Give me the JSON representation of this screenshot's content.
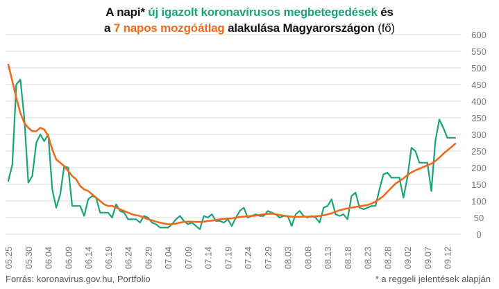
{
  "header": {
    "line1_prefix": "A napi*",
    "line1_highlight": "új igazolt koronavírusos megbetegedések",
    "line1_suffix": "és",
    "line2_prefix": "a",
    "line2_highlight": "7 napos mozgóátlag",
    "line2_suffix": "alakulása Magyarországon",
    "line2_unit": "(fő)"
  },
  "footer": {
    "source": "Forrás: koronavirus.gov.hu, Portfolio",
    "note": "* a reggeli jelentések alapján"
  },
  "colors": {
    "daily": "#1aa37a",
    "average": "#ee6a1a",
    "grid": "#dddddd",
    "axis_text": "#777777"
  },
  "chart_data": {
    "type": "line",
    "title": "A napi* új igazolt koronavírusos megbetegedések és a 7 napos mozgóátlag alakulása Magyarországon (fő)",
    "ylim": [
      0,
      600
    ],
    "y_ticks": [
      0,
      50,
      100,
      150,
      200,
      250,
      300,
      350,
      400,
      450,
      500,
      550,
      600
    ],
    "y_axis_side": "right",
    "grid": true,
    "x_tick_labels": [
      "05.25",
      "05.30",
      "06.04",
      "06.09",
      "06.14",
      "06.19",
      "06.24",
      "06.29",
      "07.04",
      "07.09",
      "07.14",
      "07.19",
      "07.24",
      "07.29",
      "08.03",
      "08.08",
      "08.13",
      "08.18",
      "08.23",
      "08.28",
      "09.02",
      "09.07",
      "09.12"
    ],
    "x_tick_every": 5,
    "series": [
      {
        "key": "daily",
        "values": [
          160,
          210,
          450,
          465,
          350,
          155,
          175,
          275,
          300,
          280,
          300,
          135,
          80,
          120,
          205,
          200,
          85,
          85,
          85,
          55,
          105,
          115,
          110,
          65,
          65,
          65,
          50,
          90,
          70,
          65,
          45,
          45,
          45,
          35,
          55,
          50,
          35,
          30,
          20,
          20,
          20,
          30,
          45,
          55,
          40,
          30,
          35,
          25,
          15,
          55,
          50,
          60,
          40,
          40,
          35,
          45,
          25,
          50,
          70,
          80,
          50,
          55,
          60,
          55,
          55,
          70,
          65,
          60,
          50,
          55,
          55,
          25,
          60,
          70,
          55,
          50,
          55,
          50,
          35,
          80,
          85,
          105,
          60,
          55,
          60,
          45,
          115,
          125,
          80,
          75,
          80,
          85,
          85,
          135,
          180,
          185,
          170,
          170,
          170,
          110,
          170,
          260,
          250,
          215,
          215,
          215,
          130,
          280,
          345,
          320,
          290,
          290,
          290
        ]
      },
      {
        "key": "average",
        "values": [
          510,
          460,
          410,
          365,
          335,
          320,
          310,
          310,
          320,
          315,
          295,
          255,
          225,
          215,
          205,
          190,
          175,
          165,
          145,
          135,
          130,
          120,
          110,
          100,
          90,
          85,
          85,
          80,
          75,
          70,
          65,
          60,
          57,
          55,
          50,
          45,
          42,
          38,
          35,
          32,
          30,
          30,
          32,
          35,
          37,
          38,
          38,
          37,
          37,
          38,
          40,
          41,
          43,
          45,
          46,
          47,
          48,
          50,
          52,
          53,
          54,
          55,
          56,
          58,
          60,
          61,
          62,
          60,
          58,
          56,
          54,
          53,
          52,
          52,
          53,
          53,
          53,
          54,
          55,
          57,
          60,
          63,
          68,
          72,
          75,
          78,
          80,
          82,
          84,
          86,
          88,
          92,
          98,
          106,
          115,
          128,
          140,
          152,
          160,
          168,
          178,
          186,
          192,
          197,
          202,
          207,
          212,
          220,
          230,
          242,
          252,
          262,
          272
        ]
      }
    ]
  }
}
